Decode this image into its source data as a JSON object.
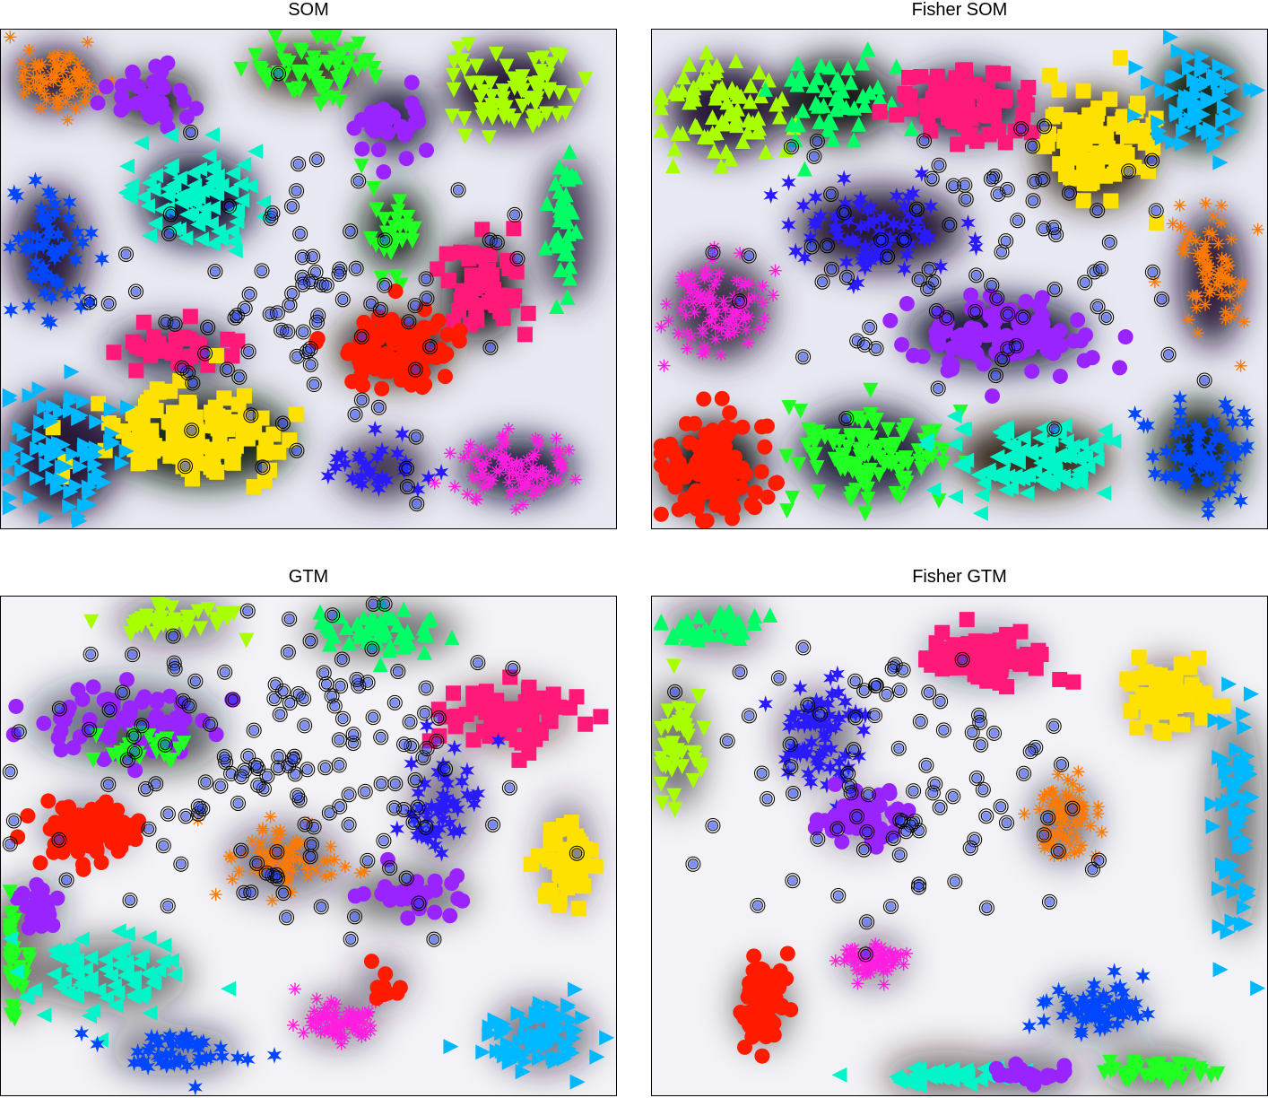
{
  "figure": {
    "colors": {
      "red": "#ff1a00",
      "orange": "#ff7a00",
      "yellow": "#ffe100",
      "lime": "#a8ff00",
      "green": "#22ff22",
      "springgreen": "#00ff66",
      "teal": "#00f5c8",
      "skyblue": "#00b8ff",
      "blue": "#0047ff",
      "indigo": "#2a1aff",
      "violet": "#9a24ff",
      "magenta": "#ff1fe0",
      "pink": "#ff1a7a"
    },
    "marker_shapes": [
      "filled-circle",
      "filled-square",
      "triangle-up",
      "triangle-down",
      "triangle-left",
      "triangle-right",
      "star",
      "asterisk",
      "open-circle"
    ]
  },
  "chart_data": [
    {
      "type": "scatter",
      "title": "SOM",
      "background": "dark cluster map with light boundaries",
      "series": [
        {
          "color": "#ff7a00",
          "marker": "asterisk",
          "center": [
            0.09,
            0.1
          ],
          "spread": [
            0.07,
            0.06
          ],
          "count": 70
        },
        {
          "color": "#9a24ff",
          "marker": "filled-circle",
          "center": [
            0.25,
            0.14
          ],
          "spread": [
            0.07,
            0.05
          ],
          "count": 40
        },
        {
          "color": "#9a24ff",
          "marker": "filled-circle",
          "center": [
            0.64,
            0.18
          ],
          "spread": [
            0.06,
            0.07
          ],
          "count": 30
        },
        {
          "color": "#22ff22",
          "marker": "triangle-down",
          "center": [
            0.5,
            0.08
          ],
          "spread": [
            0.09,
            0.05
          ],
          "count": 60
        },
        {
          "color": "#22ff22",
          "marker": "triangle-down",
          "center": [
            0.64,
            0.4
          ],
          "spread": [
            0.05,
            0.08
          ],
          "count": 30
        },
        {
          "color": "#a8ff00",
          "marker": "triangle-down",
          "center": [
            0.83,
            0.12
          ],
          "spread": [
            0.1,
            0.08
          ],
          "count": 70
        },
        {
          "color": "#00ff66",
          "marker": "triangle-up",
          "center": [
            0.92,
            0.4
          ],
          "spread": [
            0.04,
            0.14
          ],
          "count": 35
        },
        {
          "color": "#00f5c8",
          "marker": "triangle-left",
          "center": [
            0.32,
            0.34
          ],
          "spread": [
            0.09,
            0.09
          ],
          "count": 80
        },
        {
          "color": "#0047ff",
          "marker": "star",
          "center": [
            0.08,
            0.44
          ],
          "spread": [
            0.06,
            0.12
          ],
          "count": 60
        },
        {
          "color": "#ff1a7a",
          "marker": "filled-square",
          "center": [
            0.78,
            0.52
          ],
          "spread": [
            0.06,
            0.1
          ],
          "count": 45
        },
        {
          "color": "#ff1a7a",
          "marker": "filled-square",
          "center": [
            0.28,
            0.64
          ],
          "spread": [
            0.1,
            0.04
          ],
          "count": 30
        },
        {
          "color": "#ff1a00",
          "marker": "filled-circle",
          "center": [
            0.64,
            0.64
          ],
          "spread": [
            0.09,
            0.07
          ],
          "count": 110
        },
        {
          "color": "#ffe100",
          "marker": "filled-square",
          "center": [
            0.33,
            0.82
          ],
          "spread": [
            0.14,
            0.09
          ],
          "count": 120
        },
        {
          "color": "#00b8ff",
          "marker": "triangle-right",
          "center": [
            0.1,
            0.85
          ],
          "spread": [
            0.09,
            0.12
          ],
          "count": 80
        },
        {
          "color": "#2a1aff",
          "marker": "star",
          "center": [
            0.62,
            0.88
          ],
          "spread": [
            0.07,
            0.06
          ],
          "count": 30
        },
        {
          "color": "#ff1fe0",
          "marker": "asterisk",
          "center": [
            0.84,
            0.88
          ],
          "spread": [
            0.09,
            0.06
          ],
          "count": 90
        },
        {
          "color": "#444444",
          "marker": "open-circle",
          "center": [
            0.5,
            0.55
          ],
          "spread": [
            0.3,
            0.28
          ],
          "count": 90
        }
      ]
    },
    {
      "type": "scatter",
      "title": "Fisher SOM",
      "background": "dark cluster map with light boundaries",
      "series": [
        {
          "color": "#a8ff00",
          "marker": "triangle-up",
          "center": [
            0.12,
            0.16
          ],
          "spread": [
            0.09,
            0.09
          ],
          "count": 80
        },
        {
          "color": "#00ff66",
          "marker": "triangle-up",
          "center": [
            0.3,
            0.14
          ],
          "spread": [
            0.09,
            0.08
          ],
          "count": 50
        },
        {
          "color": "#ff1a7a",
          "marker": "filled-square",
          "center": [
            0.51,
            0.15
          ],
          "spread": [
            0.1,
            0.07
          ],
          "count": 80
        },
        {
          "color": "#ffe100",
          "marker": "filled-square",
          "center": [
            0.72,
            0.24
          ],
          "spread": [
            0.09,
            0.11
          ],
          "count": 90
        },
        {
          "color": "#00b8ff",
          "marker": "triangle-right",
          "center": [
            0.89,
            0.14
          ],
          "spread": [
            0.07,
            0.1
          ],
          "count": 70
        },
        {
          "color": "#2a1aff",
          "marker": "star",
          "center": [
            0.37,
            0.4
          ],
          "spread": [
            0.13,
            0.08
          ],
          "count": 70
        },
        {
          "color": "#ff1fe0",
          "marker": "asterisk",
          "center": [
            0.11,
            0.56
          ],
          "spread": [
            0.08,
            0.1
          ],
          "count": 90
        },
        {
          "color": "#9a24ff",
          "marker": "filled-circle",
          "center": [
            0.56,
            0.61
          ],
          "spread": [
            0.14,
            0.07
          ],
          "count": 100
        },
        {
          "color": "#ff7a00",
          "marker": "asterisk",
          "center": [
            0.91,
            0.5
          ],
          "spread": [
            0.05,
            0.13
          ],
          "count": 70
        },
        {
          "color": "#ff1a00",
          "marker": "filled-circle",
          "center": [
            0.1,
            0.88
          ],
          "spread": [
            0.08,
            0.09
          ],
          "count": 120
        },
        {
          "color": "#22ff22",
          "marker": "triangle-down",
          "center": [
            0.35,
            0.85
          ],
          "spread": [
            0.11,
            0.09
          ],
          "count": 110
        },
        {
          "color": "#00f5c8",
          "marker": "triangle-left",
          "center": [
            0.62,
            0.86
          ],
          "spread": [
            0.12,
            0.07
          ],
          "count": 100
        },
        {
          "color": "#0047ff",
          "marker": "star",
          "center": [
            0.89,
            0.85
          ],
          "spread": [
            0.07,
            0.1
          ],
          "count": 70
        },
        {
          "color": "#444444",
          "marker": "open-circle",
          "center": [
            0.5,
            0.45
          ],
          "spread": [
            0.32,
            0.28
          ],
          "count": 80
        }
      ]
    },
    {
      "type": "scatter",
      "title": "GTM",
      "background": "light cluster map with dark basins",
      "series": [
        {
          "color": "#a8ff00",
          "marker": "triangle-down",
          "center": [
            0.28,
            0.05
          ],
          "spread": [
            0.09,
            0.03
          ],
          "count": 40
        },
        {
          "color": "#00ff66",
          "marker": "triangle-up",
          "center": [
            0.62,
            0.07
          ],
          "spread": [
            0.12,
            0.04
          ],
          "count": 50
        },
        {
          "color": "#9a24ff",
          "marker": "filled-circle",
          "center": [
            0.2,
            0.25
          ],
          "spread": [
            0.15,
            0.08
          ],
          "count": 60
        },
        {
          "color": "#ff1a7a",
          "marker": "filled-square",
          "center": [
            0.82,
            0.24
          ],
          "spread": [
            0.1,
            0.06
          ],
          "count": 70
        },
        {
          "color": "#22ff22",
          "marker": "triangle-down",
          "center": [
            0.25,
            0.3
          ],
          "spread": [
            0.1,
            0.03
          ],
          "count": 25
        },
        {
          "color": "#2a1aff",
          "marker": "star",
          "center": [
            0.72,
            0.42
          ],
          "spread": [
            0.05,
            0.1
          ],
          "count": 50
        },
        {
          "color": "#ffe100",
          "marker": "filled-square",
          "center": [
            0.92,
            0.52
          ],
          "spread": [
            0.04,
            0.11
          ],
          "count": 50
        },
        {
          "color": "#ff1a00",
          "marker": "filled-circle",
          "center": [
            0.14,
            0.46
          ],
          "spread": [
            0.07,
            0.05
          ],
          "count": 110
        },
        {
          "color": "#ff7a00",
          "marker": "asterisk",
          "center": [
            0.46,
            0.53
          ],
          "spread": [
            0.09,
            0.07
          ],
          "count": 70
        },
        {
          "color": "#9a24ff",
          "marker": "filled-circle",
          "center": [
            0.66,
            0.6
          ],
          "spread": [
            0.1,
            0.04
          ],
          "count": 30
        },
        {
          "color": "#9a24ff",
          "marker": "filled-circle",
          "center": [
            0.06,
            0.62
          ],
          "spread": [
            0.03,
            0.05
          ],
          "count": 20
        },
        {
          "color": "#22ff22",
          "marker": "triangle-down",
          "center": [
            0.02,
            0.72
          ],
          "spread": [
            0.02,
            0.12
          ],
          "count": 35
        },
        {
          "color": "#00f5c8",
          "marker": "triangle-left",
          "center": [
            0.18,
            0.76
          ],
          "spread": [
            0.12,
            0.07
          ],
          "count": 80
        },
        {
          "color": "#ff1fe0",
          "marker": "asterisk",
          "center": [
            0.55,
            0.85
          ],
          "spread": [
            0.06,
            0.04
          ],
          "count": 80
        },
        {
          "color": "#ff1a00",
          "marker": "filled-circle",
          "center": [
            0.62,
            0.77
          ],
          "spread": [
            0.04,
            0.04
          ],
          "count": 10
        },
        {
          "color": "#0047ff",
          "marker": "star",
          "center": [
            0.28,
            0.91
          ],
          "spread": [
            0.1,
            0.04
          ],
          "count": 50
        },
        {
          "color": "#00b8ff",
          "marker": "triangle-right",
          "center": [
            0.88,
            0.88
          ],
          "spread": [
            0.08,
            0.07
          ],
          "count": 80
        },
        {
          "color": "#444444",
          "marker": "open-circle",
          "center": [
            0.45,
            0.35
          ],
          "spread": [
            0.35,
            0.3
          ],
          "count": 150
        }
      ]
    },
    {
      "type": "scatter",
      "title": "Fisher GTM",
      "background": "light cluster map with colored basins",
      "series": [
        {
          "color": "#00ff66",
          "marker": "triangle-up",
          "center": [
            0.1,
            0.06
          ],
          "spread": [
            0.08,
            0.03
          ],
          "count": 40
        },
        {
          "color": "#a8ff00",
          "marker": "triangle-down",
          "center": [
            0.04,
            0.3
          ],
          "spread": [
            0.03,
            0.12
          ],
          "count": 45
        },
        {
          "color": "#ff1a7a",
          "marker": "filled-square",
          "center": [
            0.54,
            0.12
          ],
          "spread": [
            0.09,
            0.05
          ],
          "count": 80
        },
        {
          "color": "#ffe100",
          "marker": "filled-square",
          "center": [
            0.84,
            0.2
          ],
          "spread": [
            0.06,
            0.07
          ],
          "count": 60
        },
        {
          "color": "#00b8ff",
          "marker": "triangle-right",
          "center": [
            0.95,
            0.45
          ],
          "spread": [
            0.03,
            0.22
          ],
          "count": 60
        },
        {
          "color": "#2a1aff",
          "marker": "star",
          "center": [
            0.27,
            0.28
          ],
          "spread": [
            0.06,
            0.09
          ],
          "count": 70
        },
        {
          "color": "#9a24ff",
          "marker": "filled-circle",
          "center": [
            0.34,
            0.45
          ],
          "spread": [
            0.06,
            0.05
          ],
          "count": 60
        },
        {
          "color": "#ff7a00",
          "marker": "asterisk",
          "center": [
            0.67,
            0.45
          ],
          "spread": [
            0.05,
            0.08
          ],
          "count": 70
        },
        {
          "color": "#ff1fe0",
          "marker": "asterisk",
          "center": [
            0.36,
            0.73
          ],
          "spread": [
            0.05,
            0.03
          ],
          "count": 70
        },
        {
          "color": "#ff1a00",
          "marker": "filled-circle",
          "center": [
            0.18,
            0.82
          ],
          "spread": [
            0.03,
            0.08
          ],
          "count": 70
        },
        {
          "color": "#0047ff",
          "marker": "star",
          "center": [
            0.72,
            0.83
          ],
          "spread": [
            0.08,
            0.05
          ],
          "count": 60
        },
        {
          "color": "#00f5c8",
          "marker": "triangle-left",
          "center": [
            0.48,
            0.96
          ],
          "spread": [
            0.1,
            0.015
          ],
          "count": 50
        },
        {
          "color": "#22ff22",
          "marker": "triangle-down",
          "center": [
            0.82,
            0.95
          ],
          "spread": [
            0.09,
            0.02
          ],
          "count": 40
        },
        {
          "color": "#9a24ff",
          "marker": "filled-circle",
          "center": [
            0.62,
            0.96
          ],
          "spread": [
            0.07,
            0.015
          ],
          "count": 20
        },
        {
          "color": "#444444",
          "marker": "open-circle",
          "center": [
            0.45,
            0.4
          ],
          "spread": [
            0.32,
            0.3
          ],
          "count": 90
        }
      ]
    }
  ]
}
